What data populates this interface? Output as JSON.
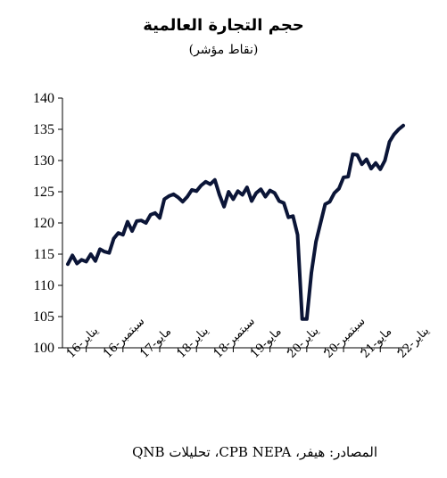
{
  "chart_data": {
    "type": "line",
    "title": "حجم التجارة العالمية",
    "subtitle": "(نقاط مؤشر)",
    "source": "المصادر: هيفر، CPB NEPA، تحليلات QNB",
    "xlabel": "",
    "ylabel": "",
    "ylim": [
      100,
      140
    ],
    "yticks": [
      100,
      105,
      110,
      115,
      120,
      125,
      130,
      135,
      140
    ],
    "x_start": "2016-01",
    "xtick_labels": [
      "يناير-16",
      "سبتمبر-16",
      "مايو-17",
      "يناير-18",
      "سبتمبر-18",
      "مايو-19",
      "يناير-20",
      "سبتمبر-20",
      "مايو-21",
      "يناير-22"
    ],
    "xtick_index": [
      0,
      8,
      16,
      24,
      32,
      40,
      48,
      56,
      64,
      72
    ],
    "grid": false,
    "legend": "none",
    "series": [
      {
        "color": "#0b1537",
        "values": [
          113.4,
          114.8,
          113.5,
          114.1,
          113.8,
          115.0,
          113.9,
          115.8,
          115.4,
          115.2,
          117.5,
          118.4,
          118.1,
          120.2,
          118.7,
          120.3,
          120.4,
          120.0,
          121.3,
          121.6,
          120.8,
          123.8,
          124.3,
          124.6,
          124.1,
          123.4,
          124.2,
          125.3,
          125.1,
          126.0,
          126.6,
          126.2,
          126.9,
          124.5,
          122.6,
          125.0,
          123.8,
          125.1,
          124.5,
          125.7,
          123.5,
          124.8,
          125.4,
          124.2,
          125.2,
          124.8,
          123.5,
          123.2,
          120.9,
          121.1,
          118.1,
          104.6,
          104.6,
          112.0,
          117.0,
          120.0,
          123.0,
          123.4,
          124.8,
          125.5,
          127.3,
          127.4,
          131.0,
          130.9,
          129.4,
          130.2,
          128.7,
          129.6,
          128.6,
          130.0,
          133.0,
          134.2,
          135.0,
          135.6
        ]
      }
    ]
  }
}
